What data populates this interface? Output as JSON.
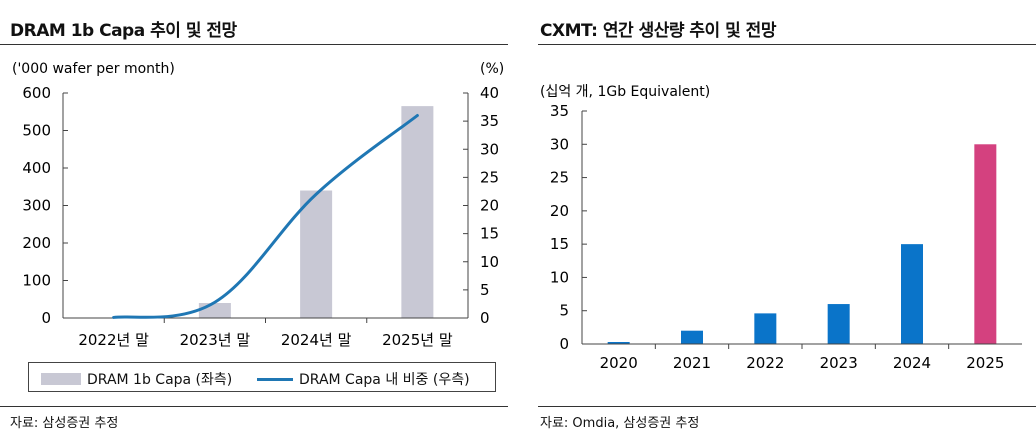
{
  "left": {
    "title": "DRAM 1b Capa 추이 및 전망",
    "source": "자료: 삼성증권 추정",
    "legend": {
      "bar_label": "DRAM 1b Capa (좌측)",
      "line_label": "DRAM Capa 내 비중 (우측)"
    }
  },
  "right": {
    "title": "CXMT: 연간 생산량 추이 및 전망",
    "source": "자료: Omdia, 삼성증권 추정"
  },
  "chart_data": [
    {
      "type": "bar+line",
      "title": "DRAM 1b Capa 추이 및 전망",
      "ylabel_left": "('000 wafer per  month)",
      "ylabel_right": "(%)",
      "categories": [
        "2022년 말",
        "2023년 말",
        "2024년 말",
        "2025년 말"
      ],
      "ylim_left": [
        0,
        600
      ],
      "yticks_left": [
        "0",
        "100",
        "200",
        "300",
        "400",
        "500",
        "600"
      ],
      "ylim_right": [
        0,
        40
      ],
      "yticks_right": [
        "0",
        "5",
        "10",
        "15",
        "20",
        "25",
        "30",
        "35",
        "40"
      ],
      "series": [
        {
          "name": "DRAM 1b Capa (좌측)",
          "axis": "left",
          "kind": "bar",
          "color": "#c8c8d4",
          "values": [
            0,
            40,
            340,
            565
          ]
        },
        {
          "name": "DRAM Capa 내 비중 (우측)",
          "axis": "right",
          "kind": "line",
          "color": "#1f77b4",
          "values": [
            0.1,
            2.8,
            22,
            36
          ]
        }
      ]
    },
    {
      "type": "bar",
      "title": "CXMT: 연간 생산량 추이 및 전망",
      "ylabel": "(십억 개, 1Gb Equivalent)",
      "categories": [
        "2020",
        "2021",
        "2022",
        "2023",
        "2024",
        "2025"
      ],
      "values": [
        0.3,
        2,
        4.6,
        6,
        15,
        30
      ],
      "colors": [
        "#0a74c9",
        "#0a74c9",
        "#0a74c9",
        "#0a74c9",
        "#0a74c9",
        "#d4417f"
      ],
      "ylim": [
        0,
        35
      ],
      "yticks": [
        "0",
        "5",
        "10",
        "15",
        "20",
        "25",
        "30",
        "35"
      ]
    }
  ]
}
